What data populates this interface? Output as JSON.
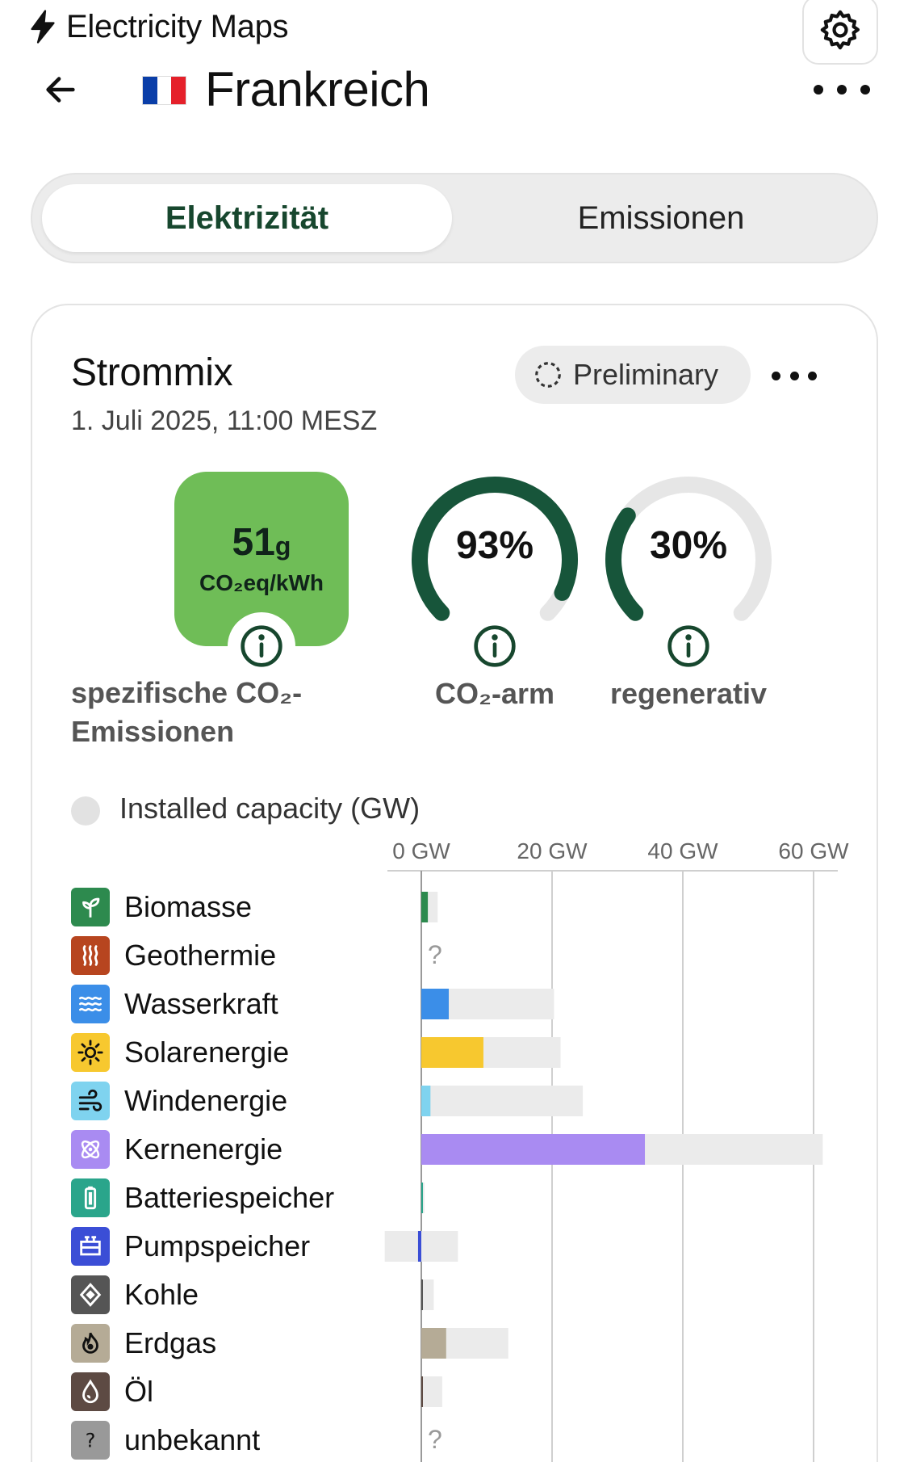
{
  "app": {
    "name": "Electricity Maps",
    "logo_icon": "bolt-icon",
    "settings_icon": "gear-icon"
  },
  "header": {
    "country": "Frankreich",
    "flag_colors": [
      "#0a3ea8",
      "#ffffff",
      "#e5202a"
    ],
    "back_icon": "arrow-left-icon",
    "more_icon": "ellipsis-icon"
  },
  "tabs": [
    {
      "label": "Elektrizität",
      "active": true
    },
    {
      "label": "Emissionen",
      "active": false
    }
  ],
  "card": {
    "title": "Strommix",
    "date": "1. Juli 2025, 11:00 MESZ",
    "badge": "Preliminary",
    "intensity": {
      "value": "51",
      "unit_small": "g",
      "unit": "CO₂eq/kWh",
      "label": "spezifische CO₂-Emissionen",
      "color": "#6fbd57"
    },
    "gauges": [
      {
        "value": "93%",
        "fraction": 0.93,
        "label": "CO₂-arm"
      },
      {
        "value": "30%",
        "fraction": 0.3,
        "label": "regenerativ"
      }
    ],
    "capacity_title": "Installed capacity (GW)"
  },
  "chart_data": {
    "type": "bar",
    "title": "Installed capacity (GW)",
    "x_ticks": [
      "0 GW",
      "20 GW",
      "40 GW",
      "60 GW"
    ],
    "xlim": [
      0,
      60
    ],
    "sources": [
      {
        "name": "Biomasse",
        "icon": "sprout-icon",
        "color": "#2d8a4e",
        "production": 1.0,
        "capacity": 2.5
      },
      {
        "name": "Geothermie",
        "icon": "heat-icon",
        "color": "#b7451f",
        "production": null,
        "capacity": null,
        "unknown": "?"
      },
      {
        "name": "Wasserkraft",
        "icon": "water-icon",
        "color": "#3b8ee8",
        "production": 4.2,
        "capacity": 20.3
      },
      {
        "name": "Solarenergie",
        "icon": "sun-icon",
        "color": "#f7c82f",
        "production": 9.5,
        "capacity": 21.3
      },
      {
        "name": "Windenergie",
        "icon": "wind-icon",
        "color": "#7fd3ef",
        "production": 1.4,
        "capacity": 24.7
      },
      {
        "name": "Kernenergie",
        "icon": "atom-icon",
        "color": "#a98bf2",
        "production": 34.2,
        "capacity": 61.4
      },
      {
        "name": "Batteriespeicher",
        "icon": "battery-icon",
        "color": "#2aa58b",
        "production": 0.2,
        "capacity": 0.5
      },
      {
        "name": "Pumpspeicher",
        "icon": "pump-icon",
        "color": "#3b4ed6",
        "production": -0.5,
        "capacity": 5.6,
        "storage_min": -5.6
      },
      {
        "name": "Kohle",
        "icon": "coal-icon",
        "color": "#555555",
        "production": 0.0,
        "capacity": 1.9
      },
      {
        "name": "Erdgas",
        "icon": "gas-icon",
        "color": "#b5ab96",
        "production": 3.8,
        "capacity": 13.3
      },
      {
        "name": "Öl",
        "icon": "oil-drop-icon",
        "color": "#5d4a43",
        "production": 0.1,
        "capacity": 3.2
      },
      {
        "name": "unbekannt",
        "icon": "question-icon",
        "color": "#999999",
        "production": null,
        "capacity": null,
        "unknown": "?"
      }
    ]
  }
}
